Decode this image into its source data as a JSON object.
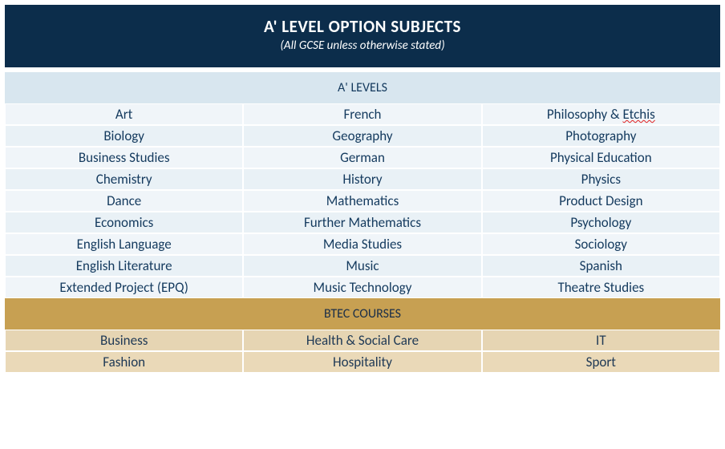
{
  "colors": {
    "navy": "#0c2d4b",
    "white": "#ffffff",
    "text_navy": "#143a5e",
    "alevel_header_bg": "#d8e6ef",
    "alevel_row_light": "#f0f5f9",
    "alevel_row_alt": "#e9f1f6",
    "btec_header_bg": "#c7a052",
    "btec_header_text": "#1a2e48",
    "btec_row_bg": "#e6d5b3",
    "btec_row_alt": "#ead9b8",
    "btec_text": "#203a56"
  },
  "header": {
    "title": "A' LEVEL OPTION SUBJECTS",
    "subtitle": "(All GCSE unless otherwise stated)"
  },
  "alevels": {
    "section_label": "A' LEVELS",
    "rows": [
      {
        "c1": "Art",
        "c2": "French",
        "c3_prefix": "Philosophy & ",
        "c3_err": "Etchis"
      },
      {
        "c1": "Biology",
        "c2": "Geography",
        "c3": "Photography"
      },
      {
        "c1": "Business Studies",
        "c2": "German",
        "c3": "Physical Education"
      },
      {
        "c1": "Chemistry",
        "c2": "History",
        "c3": "Physics"
      },
      {
        "c1": "Dance",
        "c2": "Mathematics",
        "c3": "Product Design"
      },
      {
        "c1": "Economics",
        "c2": "Further Mathematics",
        "c3": "Psychology"
      },
      {
        "c1": "English Language",
        "c2": "Media Studies",
        "c3": "Sociology"
      },
      {
        "c1": "English Literature",
        "c2": "Music",
        "c3": "Spanish"
      },
      {
        "c1": "Extended Project (EPQ)",
        "c2": "Music Technology",
        "c3": "Theatre Studies"
      }
    ]
  },
  "btec": {
    "section_label": "BTEC COURSES",
    "rows": [
      {
        "c1": "Business",
        "c2": "Health & Social Care",
        "c3": "IT"
      },
      {
        "c1": "Fashion",
        "c2": "Hospitality",
        "c3": "Sport"
      }
    ]
  }
}
